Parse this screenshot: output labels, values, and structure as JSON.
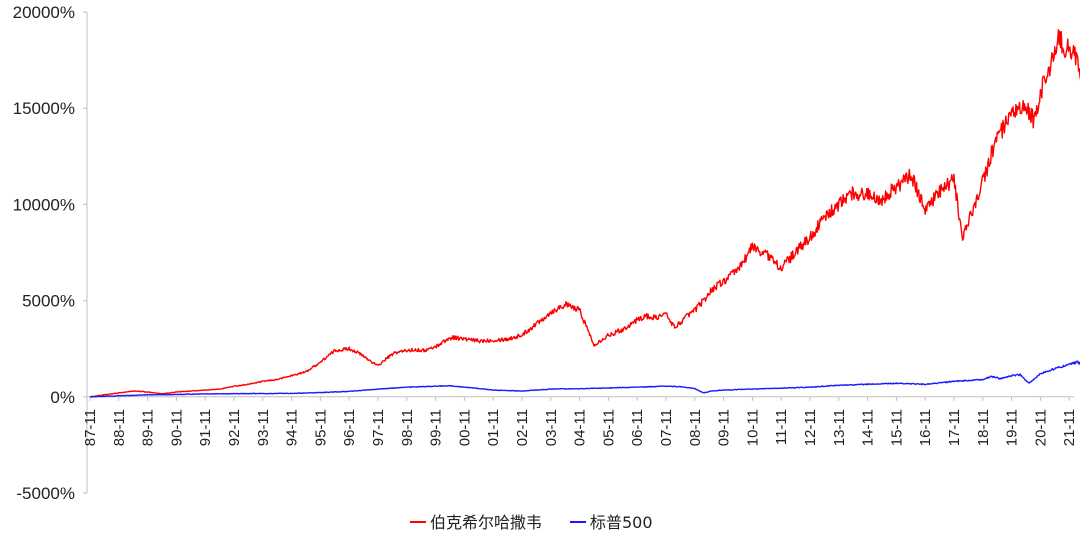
{
  "chart_data": {
    "type": "line",
    "title": "",
    "xlabel": "",
    "ylabel": "",
    "ylim": [
      -5000,
      20000
    ],
    "yticks": [
      "20000%",
      "15000%",
      "10000%",
      "5000%",
      "0%",
      "-5000%"
    ],
    "ytick_values": [
      20000,
      15000,
      10000,
      5000,
      0,
      -5000
    ],
    "xticks": [
      "87-11",
      "88-11",
      "89-11",
      "90-11",
      "91-11",
      "92-11",
      "93-11",
      "94-11",
      "95-11",
      "96-11",
      "97-11",
      "98-11",
      "99-11",
      "00-11",
      "01-11",
      "02-11",
      "03-11",
      "04-11",
      "05-11",
      "06-11",
      "07-11",
      "08-11",
      "09-11",
      "10-11",
      "11-11",
      "12-11",
      "13-11",
      "14-11",
      "15-11",
      "16-11",
      "17-11",
      "18-11",
      "19-11",
      "20-11",
      "21-11"
    ],
    "grid": false,
    "legend_position": "bottom",
    "x_unit": "years since 1987-11",
    "series": [
      {
        "name": "伯克希尔哈撒韦",
        "color": "#ff0000",
        "x": [
          0,
          0.5,
          1,
          1.5,
          2,
          2.5,
          3,
          3.5,
          4,
          4.5,
          5,
          5.5,
          6,
          6.5,
          7,
          7.5,
          8,
          8.5,
          9,
          9.3,
          9.6,
          10,
          10.3,
          10.6,
          11,
          11.3,
          11.6,
          12,
          12.3,
          12.6,
          13,
          13.5,
          14,
          14.5,
          15,
          15.5,
          16,
          16.5,
          17,
          17.5,
          18,
          18.5,
          19,
          19.3,
          19.6,
          20,
          20.3,
          20.6,
          20.8,
          21,
          21.3,
          21.6,
          22,
          22.5,
          23,
          23.5,
          24,
          24.5,
          25,
          25.5,
          26,
          26.5,
          27,
          27.5,
          28,
          28.5,
          29,
          29.5,
          30,
          30.3,
          30.6,
          31,
          31.5,
          32,
          32.3,
          32.6,
          32.8,
          33,
          33.3,
          33.6,
          34,
          34.3,
          34.5
        ],
        "y": [
          0,
          100,
          200,
          300,
          250,
          150,
          250,
          300,
          350,
          400,
          550,
          650,
          800,
          900,
          1100,
          1300,
          1800,
          2400,
          2500,
          2300,
          2000,
          1600,
          2000,
          2300,
          2400,
          2450,
          2400,
          2600,
          2900,
          3100,
          3000,
          2900,
          2950,
          3000,
          3200,
          3800,
          4400,
          4800,
          4500,
          2700,
          3200,
          3500,
          4000,
          4200,
          4100,
          4300,
          3600,
          4000,
          4300,
          4500,
          5000,
          5600,
          6000,
          6600,
          7800,
          7400,
          6700,
          7500,
          8300,
          9300,
          10000,
          10600,
          10500,
          10300,
          10900,
          11500,
          9800,
          10600,
          11300,
          8200,
          9500,
          11200,
          13500,
          14500,
          15000,
          14800,
          14300,
          15800,
          17000,
          18500,
          18000,
          17500,
          16500
        ]
      },
      {
        "name": "标普500",
        "color": "#1a1aff",
        "x": [
          0,
          1,
          2,
          3,
          4,
          5,
          6,
          7,
          8,
          9,
          10,
          11,
          12,
          12.5,
          13,
          14,
          15,
          15.5,
          16,
          17,
          18,
          19,
          20,
          20.5,
          21,
          21.3,
          21.6,
          22,
          23,
          24,
          25,
          26,
          27,
          28,
          29,
          30,
          31,
          31.3,
          31.6,
          32,
          32.3,
          32.6,
          33,
          33.5,
          34,
          34.3,
          34.5
        ],
        "y": [
          0,
          50,
          100,
          120,
          150,
          160,
          170,
          180,
          220,
          280,
          400,
          500,
          550,
          580,
          500,
          350,
          300,
          350,
          400,
          420,
          460,
          500,
          550,
          520,
          430,
          200,
          300,
          350,
          400,
          450,
          500,
          600,
          650,
          700,
          650,
          800,
          900,
          1050,
          950,
          1100,
          1150,
          700,
          1200,
          1450,
          1700,
          1800,
          1600
        ]
      }
    ]
  }
}
